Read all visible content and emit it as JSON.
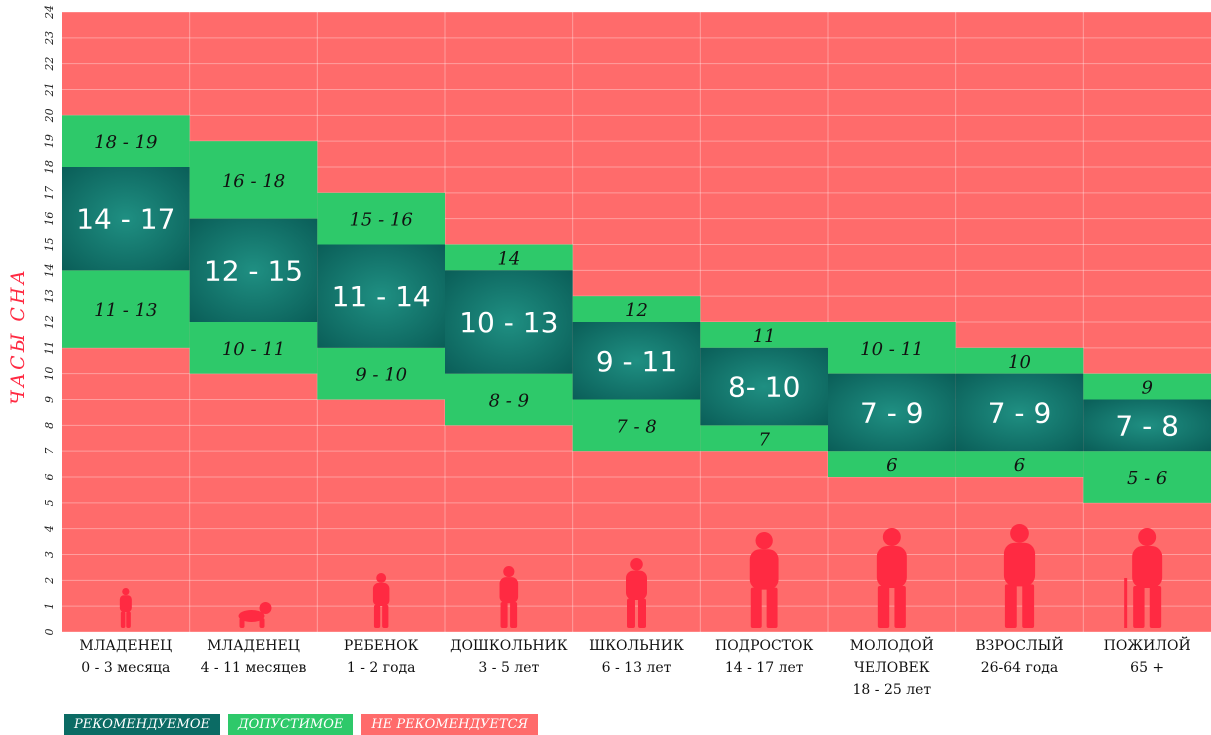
{
  "chart_data": {
    "type": "bar",
    "ylabel": "ЧАСЫ СНА",
    "ylim": [
      0,
      24
    ],
    "yticks": [
      "0",
      "1",
      "2",
      "3",
      "4",
      "5",
      "6",
      "7",
      "8",
      "9",
      "10",
      "11",
      "12",
      "13",
      "14",
      "15",
      "16",
      "17",
      "18",
      "19",
      "20",
      "21",
      "22",
      "23",
      "24"
    ],
    "grid": true,
    "categories": [
      {
        "name": "МЛАДЕНЕЦ",
        "age": "0 - 3 месяца"
      },
      {
        "name": "МЛАДЕНЕЦ",
        "age": "4 - 11 месяцев"
      },
      {
        "name": "РЕБЕНОК",
        "age": "1 - 2 года"
      },
      {
        "name": "ДОШКОЛЬНИК",
        "age": "3 - 5 лет"
      },
      {
        "name": "ШКОЛЬНИК",
        "age": "6 - 13 лет"
      },
      {
        "name": "ПОДРОСТОК",
        "age": "14 - 17 лет"
      },
      {
        "name": "МОЛОДОЙ ЧЕЛОВЕК",
        "age": "18 - 25 лет"
      },
      {
        "name": "ВЗРОСЛЫЙ",
        "age": "26-64 года"
      },
      {
        "name": "ПОЖИЛОЙ",
        "age": "65 +"
      }
    ],
    "recommended": [
      {
        "range": [
          14,
          18
        ],
        "label": "14 - 17"
      },
      {
        "range": [
          12,
          16
        ],
        "label": "12 - 15"
      },
      {
        "range": [
          11,
          15
        ],
        "label": "11 - 14"
      },
      {
        "range": [
          10,
          14
        ],
        "label": "10 - 13"
      },
      {
        "range": [
          9,
          12
        ],
        "label": "9 - 11"
      },
      {
        "range": [
          8,
          11
        ],
        "label": "8- 10"
      },
      {
        "range": [
          7,
          10
        ],
        "label": "7 - 9"
      },
      {
        "range": [
          7,
          10
        ],
        "label": "7 - 9"
      },
      {
        "range": [
          7,
          9
        ],
        "label": "7 - 8"
      }
    ],
    "acceptable_upper": [
      {
        "range": [
          18,
          20
        ],
        "label": "18 - 19"
      },
      {
        "range": [
          16,
          19
        ],
        "label": "16 - 18"
      },
      {
        "range": [
          15,
          17
        ],
        "label": "15 - 16"
      },
      {
        "range": [
          14,
          15
        ],
        "label": "14"
      },
      {
        "range": [
          12,
          13
        ],
        "label": "12"
      },
      {
        "range": [
          11,
          12
        ],
        "label": "11"
      },
      {
        "range": [
          10,
          12
        ],
        "label": "10 - 11"
      },
      {
        "range": [
          10,
          11
        ],
        "label": "10"
      },
      {
        "range": [
          9,
          10
        ],
        "label": "9"
      }
    ],
    "acceptable_lower": [
      {
        "range": [
          11,
          14
        ],
        "label": "11 - 13"
      },
      {
        "range": [
          10,
          12
        ],
        "label": "10 - 11"
      },
      {
        "range": [
          9,
          11
        ],
        "label": "9 - 10"
      },
      {
        "range": [
          8,
          10
        ],
        "label": "8 - 9"
      },
      {
        "range": [
          7,
          9
        ],
        "label": "7 - 8"
      },
      {
        "range": [
          7,
          8
        ],
        "label": "7"
      },
      {
        "range": [
          6,
          7
        ],
        "label": "6"
      },
      {
        "range": [
          6,
          7
        ],
        "label": "6"
      },
      {
        "range": [
          5,
          7
        ],
        "label": "5 - 6"
      }
    ],
    "legend": [
      {
        "label": "РЕКОМЕНДУЕМОЕ",
        "color": "#0b6b64"
      },
      {
        "label": "ДОПУСТИМОЕ",
        "color": "#2ec96a"
      },
      {
        "label": "НЕ РЕКОМЕНДУЕТСЯ",
        "color": "#ff6b6b"
      }
    ],
    "colors": {
      "not_recommended": "#ff6b6b",
      "acceptable": "#2ec96a",
      "recommended": "#0b6b64",
      "recommended_glow": "#1f8f82",
      "silhouette": "#ff2a42",
      "ylabel": "#ff2a42"
    }
  }
}
